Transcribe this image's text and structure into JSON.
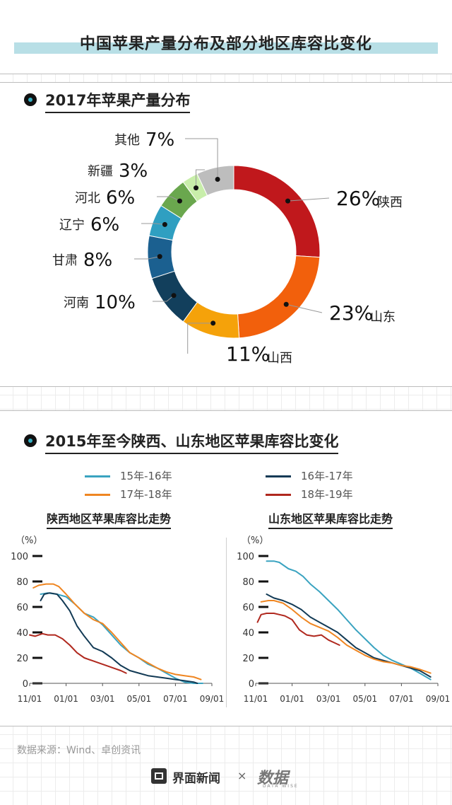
{
  "title": "中国苹果产量分布及部分地区库容比变化",
  "section1": {
    "title": "2017年苹果产量分布"
  },
  "section2": {
    "title": "2015年至今陕西、山东地区苹果库容比变化"
  },
  "source": "数据来源：Wind、卓创资讯",
  "footer": {
    "brand": "界面新闻",
    "times": "×",
    "partner": "数据",
    "partner_sub": "DATA WISE"
  },
  "chart_data": [
    {
      "type": "pie",
      "donut": true,
      "title": "2017年苹果产量分布",
      "slices": [
        {
          "label": "陕西",
          "value": 26,
          "pct": "26%",
          "color": "#c0181c"
        },
        {
          "label": "山东",
          "value": 23,
          "pct": "23%",
          "color": "#f2600c"
        },
        {
          "label": "山西",
          "value": 11,
          "pct": "11%",
          "color": "#f5a20a"
        },
        {
          "label": "河南",
          "value": 10,
          "pct": "10%",
          "color": "#123f5c"
        },
        {
          "label": "甘肃",
          "value": 8,
          "pct": "8%",
          "color": "#1b6090"
        },
        {
          "label": "辽宁",
          "value": 6,
          "pct": "6%",
          "color": "#2f9fc1"
        },
        {
          "label": "河北",
          "value": 6,
          "pct": "6%",
          "color": "#6aa74e"
        },
        {
          "label": "新疆",
          "value": 3,
          "pct": "3%",
          "color": "#c8eeaa"
        },
        {
          "label": "其他",
          "value": 7,
          "pct": "7%",
          "color": "#bdbdbd"
        }
      ]
    },
    {
      "type": "line",
      "title": "陕西地区苹果库容比走势",
      "ylabel": "（%）",
      "ylim": [
        0,
        100
      ],
      "yticks": [
        0,
        20,
        40,
        60,
        80,
        100
      ],
      "xlim": [
        0,
        10
      ],
      "xticks": [
        0,
        2,
        4,
        6,
        8,
        10
      ],
      "xtick_labels": [
        "11/01",
        "01/01",
        "03/01",
        "05/01",
        "07/01",
        "09/01"
      ],
      "series": [
        {
          "name": "15年-16年",
          "color": "#3aa3c0",
          "x": [
            0.6,
            1.0,
            1.5,
            2.0,
            2.5,
            3.0,
            3.5,
            4.0,
            4.5,
            5.0,
            5.5,
            6.0,
            6.5,
            7.0,
            7.5,
            8.0,
            8.5,
            9.0,
            9.5
          ],
          "y": [
            70,
            71,
            70,
            68,
            62,
            55,
            52,
            46,
            38,
            30,
            24,
            20,
            15,
            12,
            8,
            4,
            1,
            0,
            0
          ]
        },
        {
          "name": "16年-17年",
          "color": "#123a55",
          "x": [
            0.6,
            0.8,
            1.1,
            1.5,
            1.8,
            2.2,
            2.6,
            3.0,
            3.5,
            4.0,
            4.5,
            5.0,
            5.5,
            6.0,
            6.5,
            7.0,
            7.5,
            8.0,
            8.5,
            9.0,
            9.2
          ],
          "y": [
            65,
            70,
            71,
            70,
            65,
            57,
            45,
            37,
            28,
            25,
            20,
            14,
            10,
            8,
            6,
            5,
            4,
            3,
            2,
            1,
            0
          ]
        },
        {
          "name": "17年-18年",
          "color": "#ef8622",
          "x": [
            0.2,
            0.5,
            0.9,
            1.3,
            1.6,
            2.0,
            2.5,
            3.0,
            3.5,
            4.0,
            4.5,
            5.0,
            5.5,
            6.0,
            6.5,
            7.0,
            7.5,
            8.0,
            8.5,
            9.0,
            9.4
          ],
          "y": [
            75,
            77,
            78,
            78,
            76,
            70,
            62,
            55,
            50,
            47,
            40,
            32,
            24,
            20,
            16,
            12,
            9,
            7,
            6,
            5,
            3
          ]
        },
        {
          "name": "18年-19年",
          "color": "#b0281e",
          "x": [
            0,
            0.3,
            0.7,
            1.0,
            1.4,
            1.8,
            2.2,
            2.6,
            3.0,
            3.4,
            3.8,
            4.2,
            4.6,
            5.0,
            5.3
          ],
          "y": [
            38,
            37,
            39,
            38,
            38,
            35,
            30,
            24,
            20,
            18,
            16,
            14,
            12,
            10,
            8
          ]
        }
      ]
    },
    {
      "type": "line",
      "title": "山东地区苹果库容比走势",
      "ylabel": "（%）",
      "ylim": [
        0,
        100
      ],
      "yticks": [
        0,
        20,
        40,
        60,
        80,
        100
      ],
      "xlim": [
        0,
        10
      ],
      "xticks": [
        0,
        2,
        4,
        6,
        8,
        10
      ],
      "xtick_labels": [
        "11/01",
        "01/01",
        "03/01",
        "05/01",
        "07/01",
        "09/01"
      ],
      "series": [
        {
          "name": "15年-16年",
          "color": "#3aa3c0",
          "x": [
            0.6,
            1.0,
            1.3,
            1.8,
            2.2,
            2.6,
            3.0,
            3.5,
            4.0,
            4.5,
            5.0,
            5.5,
            6.0,
            6.5,
            7.0,
            7.5,
            8.0,
            8.5,
            9.0,
            9.6
          ],
          "y": [
            96,
            96,
            95,
            90,
            88,
            84,
            78,
            72,
            65,
            58,
            50,
            42,
            35,
            28,
            22,
            18,
            15,
            12,
            8,
            3
          ]
        },
        {
          "name": "16年-17年",
          "color": "#123a55",
          "x": [
            0.6,
            1.0,
            1.5,
            2.0,
            2.5,
            3.0,
            3.5,
            4.0,
            4.5,
            5.0,
            5.5,
            6.0,
            6.5,
            7.0,
            7.5,
            8.0,
            8.5,
            9.0,
            9.6
          ],
          "y": [
            70,
            67,
            65,
            62,
            58,
            52,
            48,
            44,
            40,
            34,
            28,
            24,
            20,
            18,
            16,
            14,
            12,
            10,
            5
          ]
        },
        {
          "name": "17年-18年",
          "color": "#ef8622",
          "x": [
            0.3,
            0.7,
            1.0,
            1.5,
            2.0,
            2.5,
            3.0,
            3.5,
            4.0,
            4.5,
            5.0,
            5.5,
            6.0,
            6.5,
            7.0,
            7.5,
            8.0,
            8.5,
            9.0,
            9.6
          ],
          "y": [
            64,
            65,
            65,
            63,
            58,
            52,
            47,
            44,
            41,
            36,
            30,
            26,
            22,
            19,
            17,
            16,
            14,
            13,
            11,
            8
          ]
        },
        {
          "name": "18年-19年",
          "color": "#b0281e",
          "x": [
            0.1,
            0.3,
            0.6,
            1.0,
            1.3,
            1.6,
            2.0,
            2.4,
            2.8,
            3.2,
            3.6,
            4.0,
            4.3,
            4.6
          ],
          "y": [
            48,
            54,
            55,
            55,
            54,
            53,
            50,
            42,
            38,
            37,
            38,
            34,
            32,
            30
          ]
        }
      ]
    }
  ]
}
